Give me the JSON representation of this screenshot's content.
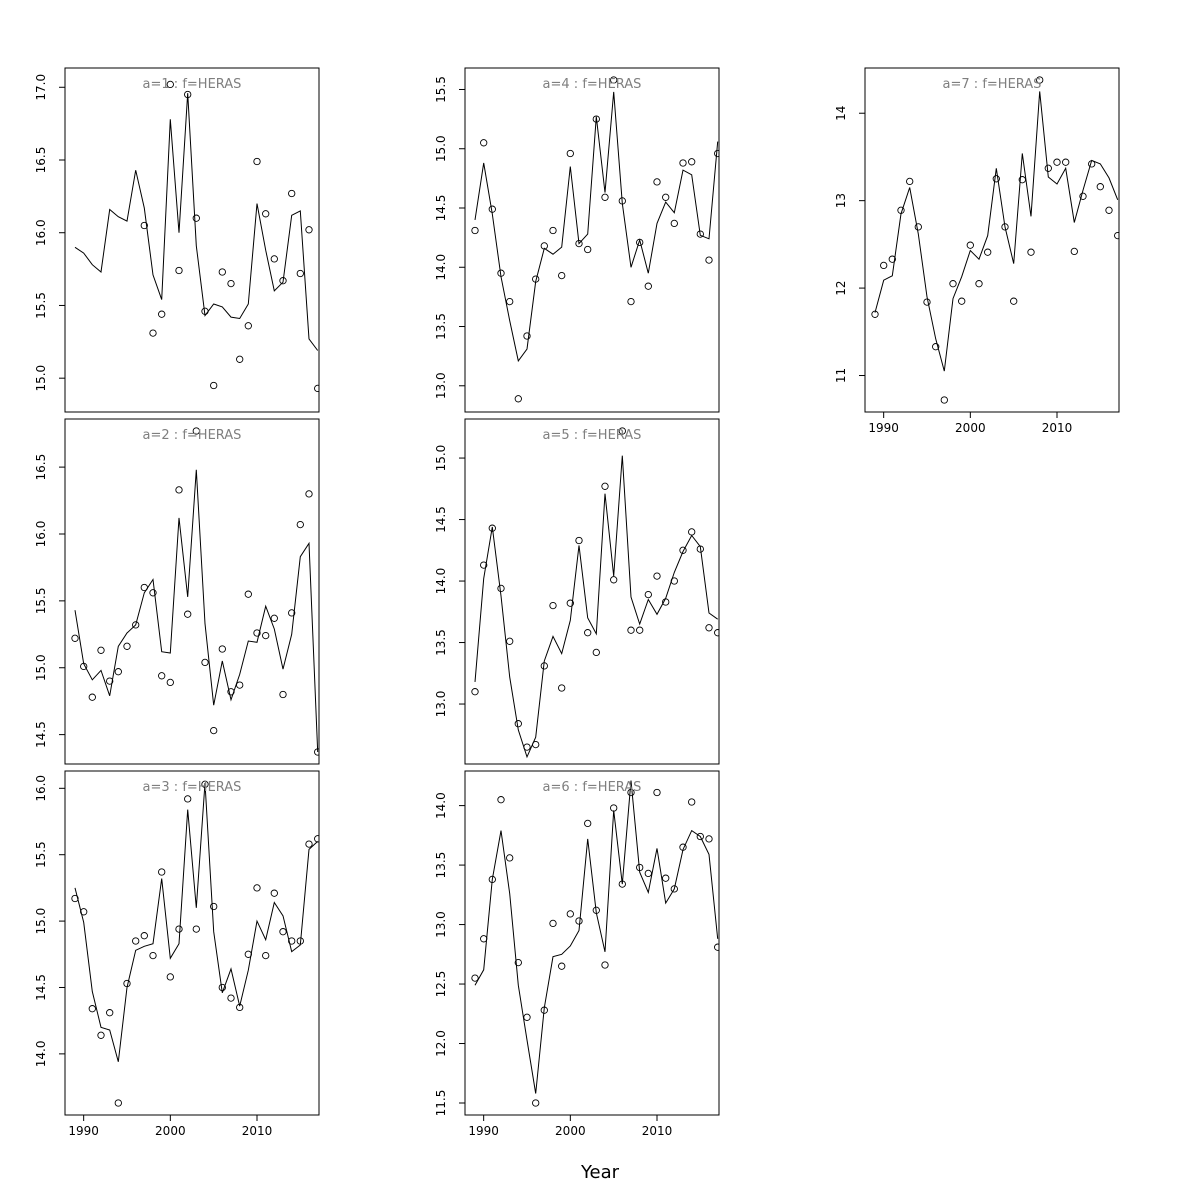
{
  "xlabel": "Year",
  "chart_data": [
    {
      "type": "scatter",
      "title": "a=1 : f=HERAS",
      "xlim": [
        1989,
        2016
      ],
      "ylim": [
        14.85,
        17.05
      ],
      "yticks": [
        "15.0",
        "15.5",
        "16.0",
        "16.5",
        "17.0"
      ],
      "points": {
        "x": [
          1998,
          1999,
          2000,
          2001,
          2002,
          2003,
          2004,
          2005,
          2006,
          2007,
          2008,
          2009,
          2010,
          2011,
          2012,
          2013,
          2014,
          2015,
          2016,
          2017,
          1997
        ],
        "y": [
          15.31,
          15.44,
          17.02,
          15.74,
          16.95,
          16.1,
          15.46,
          14.95,
          15.73,
          15.65,
          15.13,
          15.36,
          16.49,
          16.13,
          15.82,
          15.67,
          16.27,
          15.72,
          16.02,
          14.93,
          16.05
        ]
      },
      "line": {
        "x": [
          1989,
          1990,
          1991,
          1992,
          1993,
          1994,
          1995,
          1996,
          1997,
          1998,
          1999,
          2000,
          2001,
          2002,
          2003,
          2004,
          2005,
          2006,
          2007,
          2008,
          2009,
          2010,
          2011,
          2012,
          2013,
          2014,
          2015,
          2016,
          2017
        ],
        "y": [
          15.9,
          15.86,
          15.78,
          15.73,
          16.16,
          16.11,
          16.08,
          16.43,
          16.17,
          15.71,
          15.54,
          16.78,
          16.0,
          16.96,
          15.91,
          15.43,
          15.51,
          15.49,
          15.42,
          15.41,
          15.51,
          16.2,
          15.88,
          15.6,
          15.66,
          16.12,
          16.15,
          15.27,
          15.19
        ]
      }
    },
    {
      "type": "scatter",
      "title": "a=2 : f=HERAS",
      "xlim": [
        1989,
        2016
      ],
      "ylim": [
        14.37,
        16.77
      ],
      "yticks": [
        "14.5",
        "15.0",
        "15.5",
        "16.0",
        "16.5"
      ],
      "points": {
        "x": [
          1989,
          1990,
          1991,
          1992,
          1993,
          1994,
          1995,
          1996,
          1997,
          1998,
          1999,
          2000,
          2001,
          2002,
          2003,
          2004,
          2005,
          2006,
          2007,
          2008,
          2009,
          2010,
          2011,
          2012,
          2013,
          2014,
          2015,
          2016,
          2017
        ],
        "y": [
          15.22,
          15.01,
          14.78,
          15.13,
          14.9,
          14.97,
          15.16,
          15.32,
          15.6,
          15.56,
          14.94,
          14.89,
          16.33,
          15.4,
          16.77,
          15.04,
          14.53,
          15.14,
          14.82,
          14.87,
          15.55,
          15.26,
          15.24,
          15.37,
          14.8,
          15.41,
          16.07,
          16.3,
          14.37
        ]
      },
      "line": {
        "x": [
          1989,
          1990,
          1991,
          1992,
          1993,
          1994,
          1995,
          1996,
          1997,
          1998,
          1999,
          2000,
          2001,
          2002,
          2003,
          2004,
          2005,
          2006,
          2007,
          2008,
          2009,
          2010,
          2011,
          2012,
          2013,
          2014,
          2015,
          2016,
          2017
        ],
        "y": [
          15.43,
          15.03,
          14.91,
          14.98,
          14.79,
          15.16,
          15.26,
          15.32,
          15.56,
          15.66,
          15.12,
          15.11,
          16.12,
          15.53,
          16.48,
          15.33,
          14.72,
          15.05,
          14.76,
          14.95,
          15.2,
          15.19,
          15.46,
          15.29,
          14.99,
          15.25,
          15.83,
          15.93,
          14.37
        ]
      }
    },
    {
      "type": "scatter",
      "title": "a=3 : f=HERAS",
      "xlim": [
        1989,
        2016
      ],
      "ylim": [
        13.63,
        16.04
      ],
      "yticks": [
        "14.0",
        "14.5",
        "15.0",
        "15.5",
        "16.0"
      ],
      "points": {
        "x": [
          1989,
          1990,
          1991,
          1992,
          1993,
          1994,
          1995,
          1996,
          1997,
          1998,
          1999,
          2000,
          2001,
          2002,
          2003,
          2004,
          2005,
          2006,
          2007,
          2008,
          2009,
          2010,
          2011,
          2012,
          2013,
          2014,
          2015,
          2016,
          2017
        ],
        "y": [
          15.17,
          15.07,
          14.34,
          14.14,
          14.31,
          13.63,
          14.53,
          14.85,
          14.89,
          14.74,
          15.37,
          14.58,
          14.94,
          15.92,
          14.94,
          16.03,
          15.11,
          14.5,
          14.42,
          14.35,
          14.75,
          15.25,
          14.74,
          15.21,
          14.92,
          14.85,
          14.85,
          15.58,
          15.62
        ]
      },
      "line": {
        "x": [
          1989,
          1990,
          1991,
          1992,
          1993,
          1994,
          1995,
          1996,
          1997,
          1998,
          1999,
          2000,
          2001,
          2002,
          2003,
          2004,
          2005,
          2006,
          2007,
          2008,
          2009,
          2010,
          2011,
          2012,
          2013,
          2014,
          2015,
          2016,
          2017
        ],
        "y": [
          15.25,
          14.99,
          14.47,
          14.2,
          14.18,
          13.94,
          14.5,
          14.78,
          14.81,
          14.83,
          15.32,
          14.72,
          14.83,
          15.84,
          15.1,
          16.04,
          14.92,
          14.46,
          14.64,
          14.36,
          14.63,
          15.0,
          14.86,
          15.14,
          15.04,
          14.77,
          14.82,
          15.54,
          15.6
        ]
      }
    },
    {
      "type": "scatter",
      "title": "a=4 : f=HERAS",
      "xlim": [
        1989,
        2016
      ],
      "ylim": [
        12.88,
        15.58
      ],
      "yticks": [
        "13.0",
        "13.5",
        "14.0",
        "14.5",
        "15.0",
        "15.5"
      ],
      "points": {
        "x": [
          1989,
          1990,
          1991,
          1992,
          1993,
          1994,
          1995,
          1996,
          1997,
          1998,
          1999,
          2000,
          2001,
          2002,
          2003,
          2004,
          2005,
          2006,
          2007,
          2008,
          2009,
          2010,
          2011,
          2012,
          2013,
          2014,
          2015,
          2016,
          2017
        ],
        "y": [
          14.31,
          15.05,
          14.49,
          13.95,
          13.71,
          12.89,
          13.42,
          13.9,
          14.18,
          14.31,
          13.93,
          14.96,
          14.2,
          14.15,
          15.25,
          14.59,
          15.58,
          14.56,
          13.71,
          14.21,
          13.84,
          14.72,
          14.59,
          14.37,
          14.88,
          14.89,
          14.28,
          14.06,
          14.96
        ]
      },
      "line": {
        "x": [
          1989,
          1990,
          1991,
          1992,
          1993,
          1994,
          1995,
          1996,
          1997,
          1998,
          1999,
          2000,
          2001,
          2002,
          2003,
          2004,
          2005,
          2006,
          2007,
          2008,
          2009,
          2010,
          2011,
          2012,
          2013,
          2014,
          2015,
          2016,
          2017
        ],
        "y": [
          14.4,
          14.88,
          14.45,
          13.92,
          13.55,
          13.21,
          13.31,
          13.88,
          14.16,
          14.11,
          14.17,
          14.85,
          14.2,
          14.28,
          15.27,
          14.63,
          15.48,
          14.54,
          14.0,
          14.23,
          13.95,
          14.37,
          14.55,
          14.46,
          14.82,
          14.78,
          14.27,
          14.24,
          15.06
        ]
      }
    },
    {
      "type": "scatter",
      "title": "a=5 : f=HERAS",
      "xlim": [
        1989,
        2016
      ],
      "ylim": [
        12.61,
        15.22
      ],
      "yticks": [
        "13.0",
        "13.5",
        "14.0",
        "14.5",
        "15.0"
      ],
      "points": {
        "x": [
          1989,
          1990,
          1991,
          1992,
          1993,
          1994,
          1995,
          1996,
          1997,
          1998,
          1999,
          2000,
          2001,
          2002,
          2003,
          2004,
          2005,
          2006,
          2007,
          2008,
          2009,
          2010,
          2011,
          2012,
          2013,
          2014,
          2015,
          2016,
          2017
        ],
        "y": [
          13.1,
          14.13,
          14.43,
          13.94,
          13.51,
          12.84,
          12.65,
          12.67,
          13.31,
          13.8,
          13.13,
          13.82,
          14.33,
          13.58,
          13.42,
          14.77,
          14.01,
          15.22,
          13.6,
          13.6,
          13.89,
          14.04,
          13.83,
          14.0,
          14.25,
          14.4,
          14.26,
          13.62,
          13.58
        ]
      },
      "line": {
        "x": [
          1989,
          1990,
          1991,
          1992,
          1993,
          1994,
          1995,
          1996,
          1997,
          1998,
          1999,
          2000,
          2001,
          2002,
          2003,
          2004,
          2005,
          2006,
          2007,
          2008,
          2009,
          2010,
          2011,
          2012,
          2013,
          2014,
          2015,
          2016,
          2017
        ],
        "y": [
          13.18,
          14.02,
          14.44,
          13.88,
          13.22,
          12.79,
          12.57,
          12.73,
          13.35,
          13.55,
          13.41,
          13.68,
          14.29,
          13.7,
          13.57,
          14.71,
          14.04,
          15.02,
          13.87,
          13.65,
          13.85,
          13.73,
          13.86,
          14.07,
          14.24,
          14.37,
          14.28,
          13.74,
          13.69
        ]
      }
    },
    {
      "type": "scatter",
      "title": "a=6 : f=HERAS",
      "xlim": [
        1989,
        2016
      ],
      "ylim": [
        11.5,
        14.19
      ],
      "yticks": [
        "11.5",
        "12.0",
        "12.5",
        "13.0",
        "13.5",
        "14.0"
      ],
      "points": {
        "x": [
          1989,
          1990,
          1991,
          1992,
          1993,
          1994,
          1995,
          1996,
          1997,
          1998,
          1999,
          2000,
          2001,
          2002,
          2003,
          2004,
          2005,
          2006,
          2007,
          2008,
          2009,
          2010,
          2011,
          2012,
          2013,
          2014,
          2015,
          2016,
          2017
        ],
        "y": [
          12.55,
          12.88,
          13.38,
          14.05,
          13.56,
          12.68,
          12.22,
          11.5,
          12.28,
          13.01,
          12.65,
          13.09,
          13.03,
          13.85,
          13.12,
          12.66,
          13.98,
          13.34,
          14.11,
          13.48,
          13.43,
          14.11,
          13.39,
          13.3,
          13.65,
          14.03,
          13.74,
          13.72,
          12.81
        ]
      },
      "line": {
        "x": [
          1989,
          1990,
          1991,
          1992,
          1993,
          1994,
          1995,
          1996,
          1997,
          1998,
          1999,
          2000,
          2001,
          2002,
          2003,
          2004,
          2005,
          2006,
          2007,
          2008,
          2009,
          2010,
          2011,
          2012,
          2013,
          2014,
          2015,
          2016,
          2017
        ],
        "y": [
          12.49,
          12.62,
          13.38,
          13.79,
          13.26,
          12.49,
          12.03,
          11.58,
          12.3,
          12.73,
          12.75,
          12.82,
          12.95,
          13.72,
          13.1,
          12.77,
          13.96,
          13.34,
          14.21,
          13.44,
          13.27,
          13.64,
          13.18,
          13.3,
          13.63,
          13.79,
          13.74,
          13.59,
          12.88
        ]
      }
    },
    {
      "type": "scatter",
      "title": "a=7 : f=HERAS",
      "xlim": [
        1989,
        2016
      ],
      "ylim": [
        10.72,
        14.38
      ],
      "yticks": [
        "11",
        "12",
        "13",
        "14"
      ],
      "points": {
        "x": [
          1989,
          1990,
          1991,
          1992,
          1993,
          1994,
          1995,
          1996,
          1997,
          1998,
          1999,
          2000,
          2001,
          2002,
          2003,
          2004,
          2005,
          2006,
          2007,
          2008,
          2009,
          2010,
          2011,
          2012,
          2013,
          2014,
          2015,
          2016,
          2017
        ],
        "y": [
          11.7,
          12.26,
          12.33,
          12.89,
          13.22,
          12.7,
          11.84,
          11.33,
          10.72,
          12.05,
          11.85,
          12.49,
          12.05,
          12.41,
          13.25,
          12.7,
          11.85,
          13.24,
          12.41,
          14.38,
          13.37,
          13.44,
          13.44,
          12.42,
          13.05,
          13.42,
          13.16,
          12.89,
          12.6
        ]
      },
      "line": {
        "x": [
          1989,
          1990,
          1991,
          1992,
          1993,
          1994,
          1995,
          1996,
          1997,
          1998,
          1999,
          2000,
          2001,
          2002,
          2003,
          2004,
          2005,
          2006,
          2007,
          2008,
          2009,
          2010,
          2011,
          2012,
          2013,
          2014,
          2015,
          2016,
          2017
        ],
        "y": [
          11.72,
          12.09,
          12.14,
          12.85,
          13.15,
          12.62,
          11.9,
          11.42,
          11.05,
          11.88,
          12.13,
          12.43,
          12.33,
          12.6,
          13.37,
          12.7,
          12.28,
          13.54,
          12.82,
          14.25,
          13.27,
          13.19,
          13.37,
          12.75,
          13.12,
          13.46,
          13.42,
          13.26,
          13.01
        ]
      }
    }
  ]
}
